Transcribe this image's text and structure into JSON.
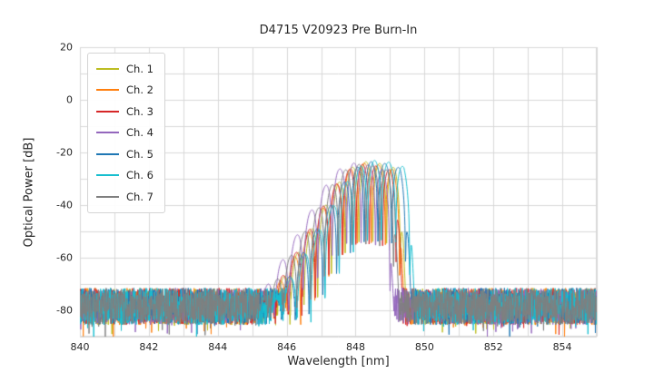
{
  "chart_data": {
    "type": "line",
    "title": "D4715 V20923 Pre Burn-In",
    "xlabel": "Wavelength [nm]",
    "ylabel": "Optical Power [dB]",
    "xlim": [
      840,
      855
    ],
    "ylim": [
      -90,
      20
    ],
    "xticks": [
      840,
      842,
      844,
      846,
      848,
      850,
      852,
      854
    ],
    "yticks": [
      20,
      0,
      -20,
      -40,
      -60,
      -80
    ],
    "grid": true,
    "grid_color": "#d8d8d8",
    "grid_step_x_nm": 1,
    "grid_step_y_db": 10,
    "legend_position": "upper left",
    "noise_floor_db": -78.5,
    "noise_amp_db": 7,
    "notch_depth_db": -30,
    "sample_step_nm": 0.008,
    "envelope_rel_db": [
      [
        -3.2,
        -60
      ],
      [
        -2.8,
        -52
      ],
      [
        -2.4,
        -44
      ],
      [
        -2.0,
        -35
      ],
      [
        -1.6,
        -26
      ],
      [
        -1.2,
        -17
      ],
      [
        -0.8,
        -8
      ],
      [
        -0.5,
        -3
      ],
      [
        -0.2,
        -0.5
      ],
      [
        0,
        0
      ],
      [
        0.3,
        -0.5
      ],
      [
        0.6,
        -1
      ],
      [
        0.85,
        -2.5
      ],
      [
        1.0,
        -8
      ],
      [
        1.08,
        -25
      ],
      [
        1.18,
        -60
      ]
    ],
    "series": [
      {
        "name": "Ch. 1",
        "color": "#bcbd22",
        "center_nm": 848.3,
        "peak_db": -23.5,
        "period_nm": 0.4,
        "seed": 101
      },
      {
        "name": "Ch. 2",
        "color": "#ff7f0e",
        "center_nm": 848.25,
        "peak_db": -24.0,
        "period_nm": 0.41,
        "seed": 202
      },
      {
        "name": "Ch. 3",
        "color": "#d62728",
        "center_nm": 848.2,
        "peak_db": -24.5,
        "period_nm": 0.39,
        "seed": 303
      },
      {
        "name": "Ch. 4",
        "color": "#9467bd",
        "center_nm": 847.95,
        "peak_db": -24.0,
        "period_nm": 0.42,
        "seed": 404
      },
      {
        "name": "Ch. 5",
        "color": "#1f77b4",
        "center_nm": 848.45,
        "peak_db": -23.5,
        "period_nm": 0.4,
        "seed": 505
      },
      {
        "name": "Ch. 6",
        "color": "#17becf",
        "center_nm": 848.55,
        "peak_db": -23.0,
        "period_nm": 0.41,
        "seed": 606
      },
      {
        "name": "Ch. 7",
        "color": "#7f7f7f",
        "center_nm": 848.1,
        "peak_db": -24.5,
        "period_nm": 0.4,
        "seed": 707
      }
    ]
  }
}
